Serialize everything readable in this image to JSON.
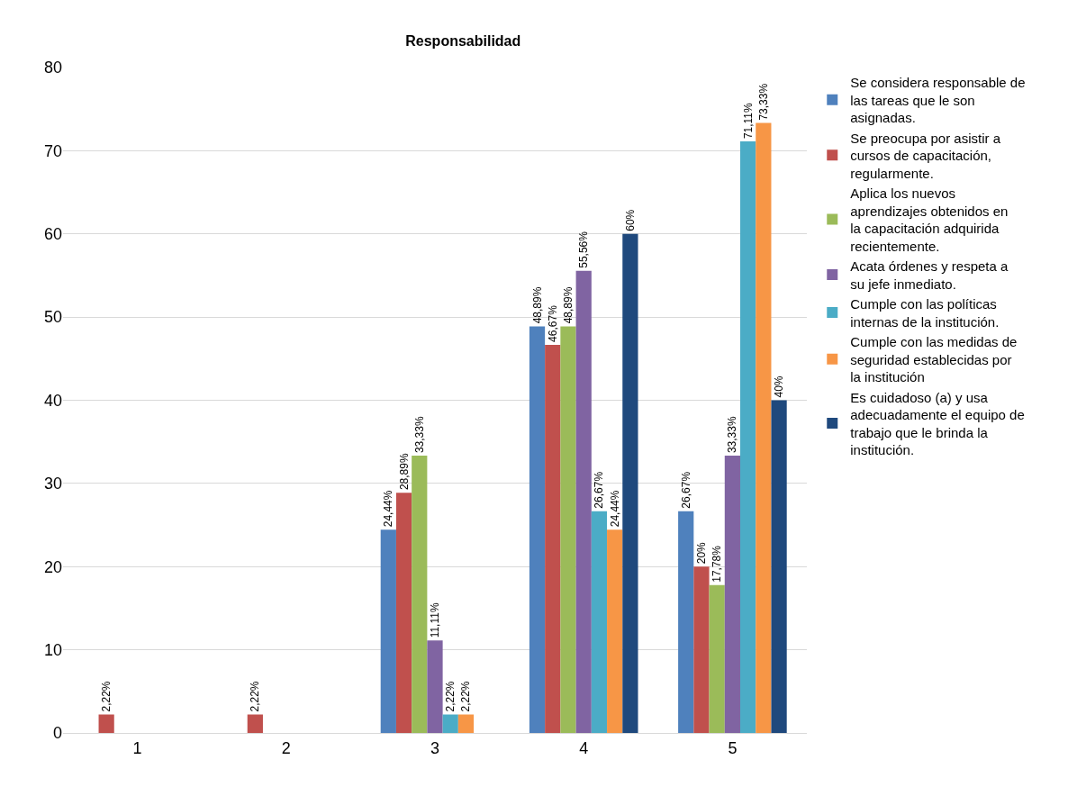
{
  "chart_data": {
    "type": "bar",
    "title": "Responsabilidad",
    "categories": [
      "1",
      "2",
      "3",
      "4",
      "5"
    ],
    "series": [
      {
        "name": "Se considera responsable de las tareas que le son asignadas.",
        "color": "#4f81bd",
        "values": [
          null,
          null,
          24.44,
          48.89,
          26.67
        ],
        "value_labels": [
          null,
          null,
          "24,44%",
          "48,89%",
          "26,67%"
        ]
      },
      {
        "name": "Se preocupa por asistir a cursos de capacitación, regularmente.",
        "color": "#c0504d",
        "values": [
          2.22,
          2.22,
          28.89,
          46.67,
          20
        ],
        "value_labels": [
          "2,22%",
          "2,22%",
          "28,89%",
          "46,67%",
          "20%"
        ]
      },
      {
        "name": "Aplica los nuevos aprendizajes obtenidos en la capacitación adquirida recientemente.",
        "color": "#9bbb59",
        "values": [
          null,
          null,
          33.33,
          48.89,
          17.78
        ],
        "value_labels": [
          null,
          null,
          "33,33%",
          "48,89%",
          "17,78%"
        ]
      },
      {
        "name": "Acata órdenes y respeta a su jefe inmediato.",
        "color": "#8064a2",
        "values": [
          null,
          null,
          11.11,
          55.56,
          33.33
        ],
        "value_labels": [
          null,
          null,
          "11,11%",
          "55,56%",
          "33,33%"
        ]
      },
      {
        "name": "Cumple con las políticas internas de la institución.",
        "color": "#4bacc6",
        "values": [
          null,
          null,
          2.22,
          26.67,
          71.11
        ],
        "value_labels": [
          null,
          null,
          "2,22%",
          "26,67%",
          "71,11%"
        ]
      },
      {
        "name": "Cumple con las medidas de seguridad establecidas por la institución",
        "color": "#f79646",
        "values": [
          null,
          null,
          2.22,
          24.44,
          73.33
        ],
        "value_labels": [
          null,
          null,
          "2,22%",
          "24,44%",
          "73,33%"
        ]
      },
      {
        "name": "Es cuidadoso (a) y usa adecuadamente el equipo de trabajo que le brinda la institución.",
        "color": "#1f497d",
        "values": [
          null,
          null,
          null,
          60,
          40
        ],
        "value_labels": [
          null,
          null,
          null,
          "60%",
          "40%"
        ]
      }
    ],
    "ylim": [
      0,
      80
    ],
    "yticks": [
      0,
      10,
      20,
      30,
      40,
      50,
      60,
      70,
      80
    ],
    "grid": "y",
    "legend": "right"
  }
}
